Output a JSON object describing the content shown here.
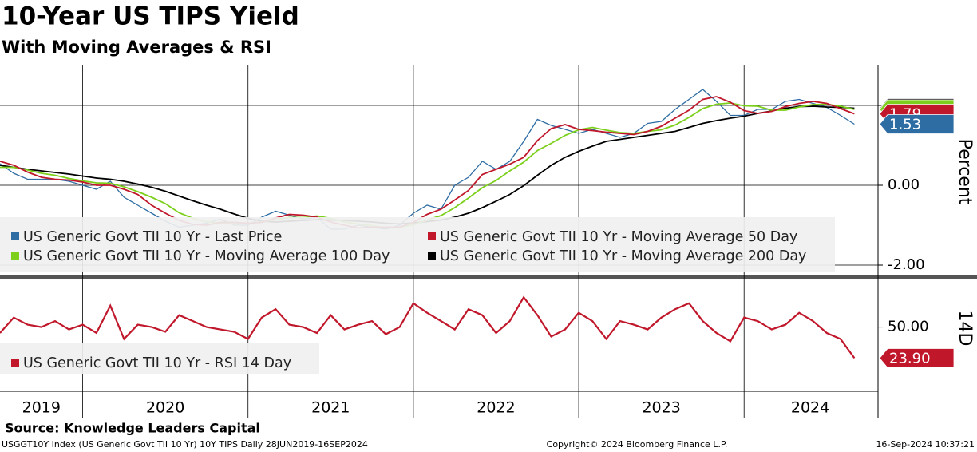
{
  "chart_data": [
    {
      "type": "line",
      "title": "10-Year US TIPS Yield",
      "subtitle": "With Moving Averages & RSI",
      "y_label": "Percent",
      "x": [
        2019.5,
        2019.583,
        2019.667,
        2019.75,
        2019.833,
        2019.917,
        2020.0,
        2020.083,
        2020.167,
        2020.25,
        2020.333,
        2020.417,
        2020.5,
        2020.583,
        2020.667,
        2020.75,
        2020.833,
        2020.917,
        2021.0,
        2021.083,
        2021.167,
        2021.25,
        2021.333,
        2021.417,
        2021.5,
        2021.583,
        2021.667,
        2021.75,
        2021.833,
        2021.917,
        2022.0,
        2022.083,
        2022.167,
        2022.25,
        2022.333,
        2022.417,
        2022.5,
        2022.583,
        2022.667,
        2022.75,
        2022.833,
        2022.917,
        2023.0,
        2023.083,
        2023.167,
        2023.25,
        2023.333,
        2023.417,
        2023.5,
        2023.583,
        2023.667,
        2023.75,
        2023.833,
        2023.917,
        2024.0,
        2024.083,
        2024.167,
        2024.25,
        2024.333,
        2024.417,
        2024.5,
        2024.583,
        2024.667
      ],
      "series": [
        {
          "name": "US Generic Govt TII 10 Yr - Last Price",
          "color": "#2e6da4",
          "label": "1.53",
          "values": [
            0.54,
            0.3,
            0.15,
            0.15,
            0.15,
            0.1,
            0.0,
            -0.1,
            0.1,
            -0.3,
            -0.5,
            -0.7,
            -0.9,
            -1.05,
            -1.0,
            -0.95,
            -0.85,
            -1.0,
            -1.0,
            -0.8,
            -0.65,
            -0.75,
            -0.85,
            -0.8,
            -1.1,
            -1.1,
            -1.0,
            -1.05,
            -1.1,
            -1.0,
            -0.7,
            -0.5,
            -0.6,
            0.0,
            0.2,
            0.6,
            0.4,
            0.6,
            1.1,
            1.65,
            1.5,
            1.4,
            1.3,
            1.4,
            1.3,
            1.2,
            1.3,
            1.55,
            1.6,
            1.9,
            2.15,
            2.4,
            2.1,
            1.75,
            1.75,
            1.9,
            1.9,
            2.1,
            2.15,
            2.05,
            1.95,
            1.75,
            1.53
          ]
        },
        {
          "name": "US Generic Govt TII 10 Yr - Moving Average 50 Day",
          "color": "#c0172b",
          "label": "1.79",
          "values": [
            0.6,
            0.5,
            0.33,
            0.2,
            0.15,
            0.13,
            0.08,
            0.0,
            0.0,
            -0.1,
            -0.23,
            -0.5,
            -0.7,
            -0.88,
            -0.98,
            -1.0,
            -0.93,
            -0.93,
            -0.95,
            -0.93,
            -0.82,
            -0.73,
            -0.75,
            -0.8,
            -0.92,
            -1.0,
            -1.07,
            -1.05,
            -1.05,
            -1.05,
            -0.93,
            -0.73,
            -0.6,
            -0.37,
            -0.13,
            0.27,
            0.4,
            0.53,
            0.7,
            1.12,
            1.42,
            1.52,
            1.4,
            1.37,
            1.33,
            1.3,
            1.27,
            1.35,
            1.48,
            1.68,
            1.88,
            2.15,
            2.22,
            2.08,
            1.87,
            1.8,
            1.85,
            1.97,
            2.05,
            2.1,
            2.05,
            1.92,
            1.79
          ]
        },
        {
          "name": "US Generic Govt TII 10 Yr - Moving Average 100 Day",
          "color": "#7ccf1b",
          "values": [
            0.45,
            0.45,
            0.38,
            0.3,
            0.25,
            0.17,
            0.11,
            0.06,
            0.05,
            -0.04,
            -0.16,
            -0.3,
            -0.46,
            -0.69,
            -0.83,
            -0.92,
            -0.95,
            -0.97,
            -0.96,
            -0.92,
            -0.86,
            -0.81,
            -0.81,
            -0.77,
            -0.83,
            -0.92,
            -0.97,
            -1.01,
            -1.07,
            -1.05,
            -0.99,
            -0.87,
            -0.76,
            -0.56,
            -0.32,
            -0.06,
            0.12,
            0.36,
            0.58,
            0.87,
            1.05,
            1.25,
            1.39,
            1.45,
            1.38,
            1.32,
            1.3,
            1.35,
            1.39,
            1.51,
            1.7,
            1.92,
            2.03,
            2.06,
            1.99,
            1.98,
            1.88,
            1.88,
            1.96,
            2.02,
            2.03,
            1.98,
            1.9
          ]
        },
        {
          "name": "US Generic Govt TII 10 Yr - Moving Average 200 Day",
          "color": "#000000",
          "values": [
            0.5,
            0.45,
            0.4,
            0.36,
            0.32,
            0.28,
            0.23,
            0.18,
            0.15,
            0.1,
            0.03,
            -0.05,
            -0.15,
            -0.27,
            -0.39,
            -0.5,
            -0.6,
            -0.72,
            -0.83,
            -0.9,
            -0.92,
            -0.9,
            -0.88,
            -0.86,
            -0.87,
            -0.88,
            -0.9,
            -0.92,
            -0.95,
            -0.97,
            -0.94,
            -0.91,
            -0.87,
            -0.8,
            -0.7,
            -0.56,
            -0.4,
            -0.23,
            -0.01,
            0.25,
            0.5,
            0.7,
            0.85,
            0.98,
            1.1,
            1.15,
            1.2,
            1.25,
            1.3,
            1.35,
            1.45,
            1.55,
            1.62,
            1.68,
            1.73,
            1.8,
            1.86,
            1.93,
            1.97,
            1.98,
            1.96,
            1.95,
            1.93
          ]
        }
      ],
      "xlim": [
        2019.5,
        2024.81
      ],
      "xgrid": [
        2020,
        2021,
        2022,
        2023,
        2024
      ],
      "ylim": [
        -2.26,
        3.0
      ],
      "yticks": [
        {
          "value": 2,
          "label": "2.00"
        },
        {
          "value": 0,
          "label": "0.00"
        },
        {
          "value": -2,
          "label": "-2.00"
        }
      ],
      "grid": true
    },
    {
      "type": "line",
      "y_label": "14D",
      "series": [
        {
          "name": "US Generic Govt TII 10 Yr - RSI 14 Day",
          "color": "#c0172b",
          "label": "23.90",
          "values": [
            45,
            58,
            52,
            50,
            55,
            48,
            52,
            45,
            68,
            40,
            52,
            50,
            46,
            60,
            55,
            50,
            48,
            46,
            40,
            58,
            65,
            52,
            50,
            45,
            60,
            48,
            52,
            55,
            44,
            50,
            70,
            62,
            55,
            48,
            65,
            60,
            45,
            55,
            75,
            60,
            42,
            48,
            62,
            55,
            40,
            55,
            52,
            48,
            58,
            65,
            70,
            55,
            45,
            38,
            58,
            55,
            48,
            52,
            62,
            55,
            45,
            40,
            23.9
          ]
        }
      ],
      "ylim": [
        -4,
        90
      ],
      "yticks": [
        {
          "value": 50,
          "label": "50.00"
        }
      ],
      "xticks": [
        {
          "value": 2019.75,
          "label": "2019"
        },
        {
          "value": 2020.5,
          "label": "2020"
        },
        {
          "value": 2021.5,
          "label": "2021"
        },
        {
          "value": 2022.5,
          "label": "2022"
        },
        {
          "value": 2023.5,
          "label": "2023"
        },
        {
          "value": 2024.4,
          "label": "2024"
        }
      ]
    }
  ],
  "source": "Source: Knowledge Leaders Capital",
  "footer": {
    "left": "USGGT10Y Index (US Generic Govt TII 10 Yr) 10Y TIPS  Daily 28JUN2019-16SEP2024",
    "center": "Copyright© 2024 Bloomberg Finance L.P.",
    "right": "16-Sep-2024 10:37:21"
  }
}
